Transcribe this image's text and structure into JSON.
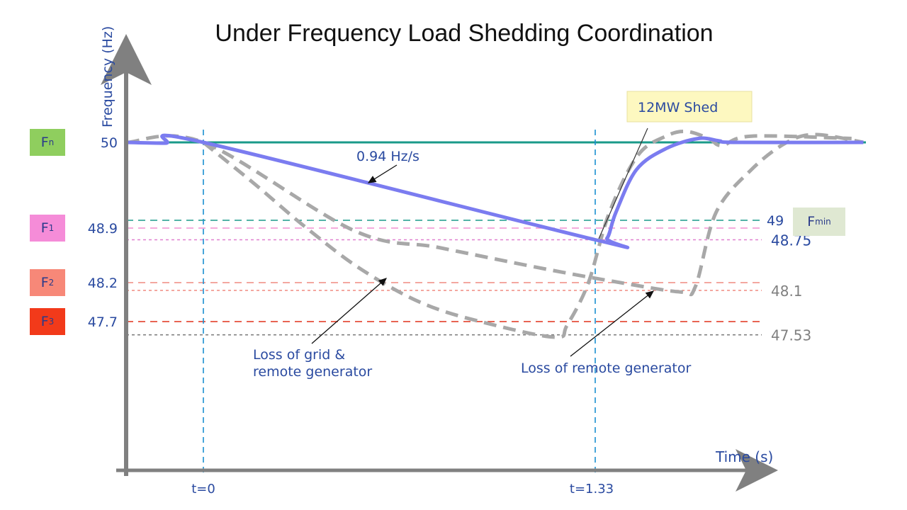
{
  "title": "Under Frequency Load Shedding Coordination",
  "chart_data": {
    "type": "line",
    "title": "Under Frequency Load Shedding Coordination",
    "xlabel": "Time (s)",
    "ylabel": "Frequency (Hz)",
    "x_ticks": [
      {
        "value": 0,
        "label": "t=0"
      },
      {
        "value": 1.33,
        "label": "t=1.33"
      }
    ],
    "levels": [
      {
        "name": "Fn",
        "sub": "n",
        "value": 50,
        "label": "50",
        "color": "#1a9a8a",
        "box_color": "#8fce5e",
        "side": "left"
      },
      {
        "name": "Fmin",
        "sub": "min",
        "value": 49,
        "label": "49",
        "color": "#1a9a8a",
        "box_color": "#dfe8d2",
        "side": "right"
      },
      {
        "name": "F1",
        "sub": "1",
        "value": 48.9,
        "label": "48.9",
        "color": "#f090d0",
        "box_color": "#f58cd8",
        "side": "left"
      },
      {
        "name": "F2",
        "sub": "2",
        "value": 48.2,
        "label": "48.2",
        "color": "#f08a80",
        "box_color": "#f78878",
        "side": "left"
      },
      {
        "name": "F3",
        "sub": "3",
        "value": 47.7,
        "label": "47.7",
        "color": "#e0301a",
        "box_color": "#f23a1a",
        "side": "left"
      }
    ],
    "minima": [
      {
        "value": 48.75,
        "label": "48.75",
        "color": "#e080d0",
        "text_color": "#2a4aa0"
      },
      {
        "value": 48.1,
        "label": "48.1",
        "color": "#f08a80",
        "text_color": "#808080"
      },
      {
        "value": 47.53,
        "label": "47.53",
        "color": "#808080",
        "text_color": "#808080"
      }
    ],
    "series": [
      {
        "id": "with-shed",
        "color": "#7b7cf0",
        "style": "solid",
        "x": [
          -0.26,
          -0.13,
          0,
          1.33,
          1.37,
          1.4,
          1.47,
          1.57,
          1.68,
          1.75,
          1.81,
          2.24
        ],
        "y": [
          50.0,
          49.99,
          50.0,
          48.75,
          48.77,
          49.1,
          49.65,
          49.92,
          50.05,
          50.02,
          50.0,
          50.0
        ]
      },
      {
        "id": "loss-of-remote-generator",
        "color": "#a8a8a8",
        "style": "dashed",
        "x": [
          -0.26,
          0,
          0.51,
          0.8,
          1.14,
          1.4,
          1.62,
          1.67,
          1.74,
          1.86,
          1.98,
          2.08,
          2.24
        ],
        "y": [
          50.0,
          50.0,
          48.87,
          48.65,
          48.39,
          48.21,
          48.08,
          48.15,
          49.1,
          49.65,
          50.0,
          50.1,
          50.0
        ]
      },
      {
        "id": "loss-of-grid-and-remote-generator",
        "color": "#a8a8a8",
        "style": "dashed",
        "x": [
          0,
          0.176,
          0.344,
          0.536,
          0.753,
          0.993,
          1.198,
          1.234,
          1.306,
          1.378,
          1.474,
          1.57,
          1.64,
          1.715,
          1.76,
          1.86,
          2.2
        ],
        "y": [
          50.0,
          49.46,
          48.92,
          48.37,
          47.92,
          47.65,
          47.5,
          47.65,
          48.19,
          49.1,
          49.83,
          50.08,
          50.14,
          50.05,
          49.96,
          50.08,
          50.05
        ]
      }
    ],
    "annotations": {
      "rate": "0.94 Hz/s",
      "shed": "12MW Shed",
      "grid_loss_line1": "Loss of grid &",
      "grid_loss_line2": "remote generator",
      "remote_loss": "Loss of remote generator"
    }
  }
}
